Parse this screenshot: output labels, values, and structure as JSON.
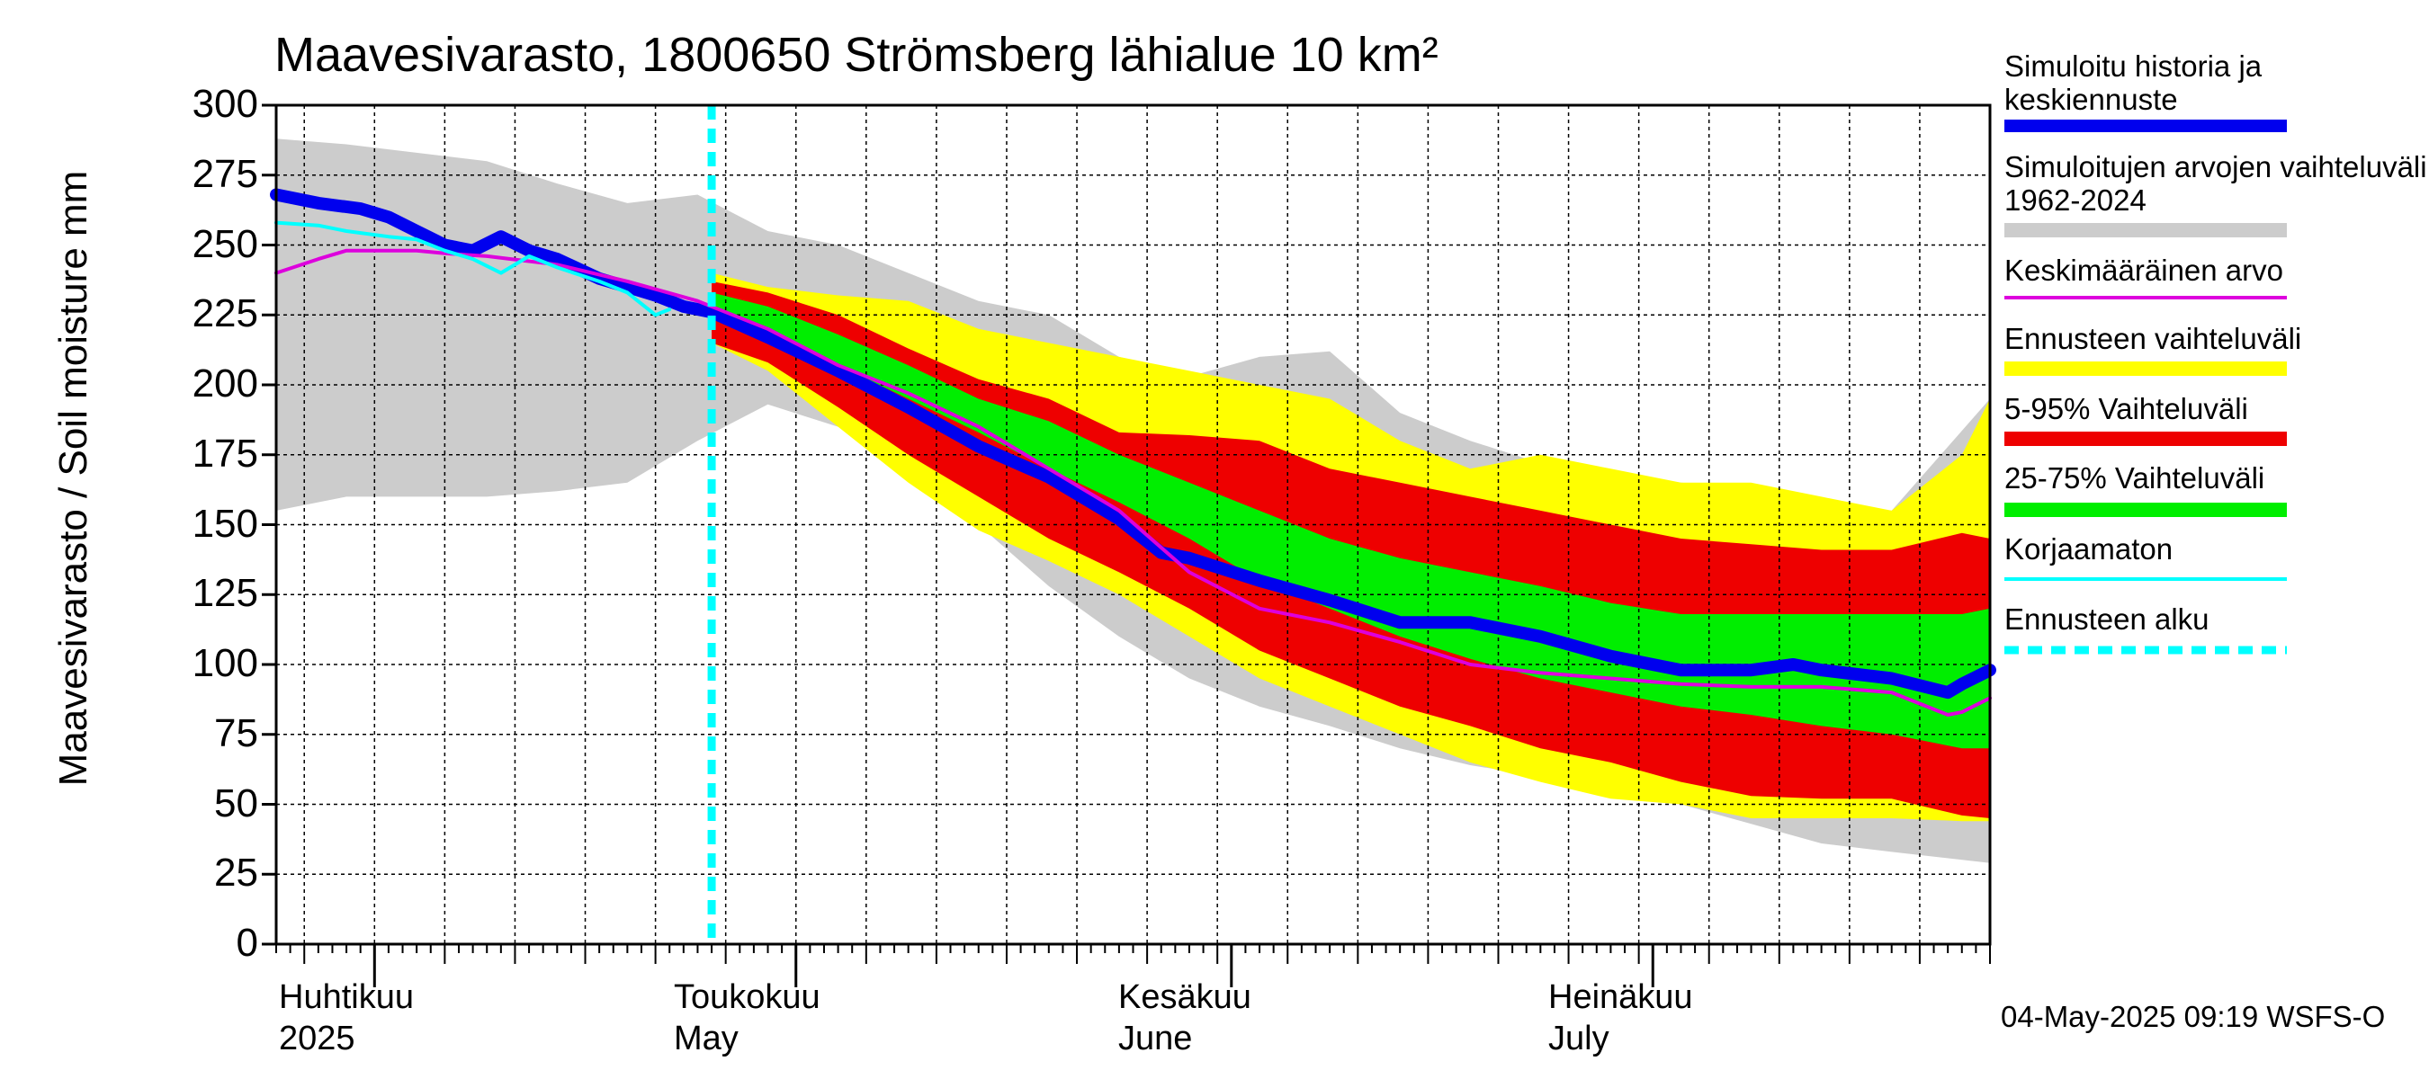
{
  "title": "Maavesivarasto, 1800650 Strömsberg lähialue 10 km²",
  "ylabel": "Maavesivarasto / Soil moisture   mm",
  "footer": "04-May-2025 09:19 WSFS-O",
  "months": [
    {
      "fi": "Huhtikuu",
      "en": "2025"
    },
    {
      "fi": "Toukokuu",
      "en": "May"
    },
    {
      "fi": "Kesäkuu",
      "en": "June"
    },
    {
      "fi": "Heinäkuu",
      "en": "July"
    }
  ],
  "legend": [
    {
      "label": "Simuloitu historia ja keskiennuste",
      "color": "#0000ee",
      "style": "thick"
    },
    {
      "label": "Simuloitujen arvojen vaihteluväli 1962-2024",
      "color": "#cccccc",
      "style": "band"
    },
    {
      "label": "Keskimääräinen arvo",
      "color": "#dd00dd",
      "style": "thin"
    },
    {
      "label": "Ennusteen vaihteluväli",
      "color": "#ffff00",
      "style": "band"
    },
    {
      "label": "5-95% Vaihteluväli",
      "color": "#ee0000",
      "style": "band"
    },
    {
      "label": "25-75% Vaihteluväli",
      "color": "#00ee00",
      "style": "band"
    },
    {
      "label": "Korjaamaton",
      "color": "#00ffff",
      "style": "thin"
    },
    {
      "label": "Ennusteen alku",
      "color": "#00ffff",
      "style": "dashed"
    }
  ],
  "chart_data": {
    "type": "area",
    "title": "Maavesivarasto, 1800650 Strömsberg lähialue 10 km²",
    "ylabel": "Maavesivarasto / Soil moisture   mm",
    "xlabel": "",
    "ylim": [
      0,
      300
    ],
    "yticks": [
      0,
      25,
      50,
      75,
      100,
      125,
      150,
      175,
      200,
      225,
      250,
      275,
      300
    ],
    "x_unit": "days since 2025-03-25",
    "xlim": [
      0,
      122
    ],
    "month_starts": [
      7,
      37,
      68,
      98
    ],
    "forecast_start": 31,
    "series": [
      {
        "name": "Simuloitujen arvojen vaihteluväli 1962-2024",
        "kind": "band",
        "color": "#cccccc",
        "x": [
          0,
          5,
          10,
          15,
          20,
          25,
          30,
          35,
          40,
          45,
          50,
          55,
          60,
          65,
          70,
          75,
          80,
          85,
          90,
          95,
          100,
          105,
          110,
          115,
          122
        ],
        "low": [
          155,
          160,
          160,
          160,
          162,
          165,
          180,
          193,
          185,
          170,
          150,
          128,
          110,
          95,
          85,
          78,
          70,
          64,
          60,
          55,
          50,
          43,
          36,
          33,
          29
        ],
        "high": [
          288,
          286,
          283,
          280,
          272,
          265,
          268,
          255,
          250,
          240,
          230,
          225,
          210,
          203,
          210,
          212,
          190,
          180,
          172,
          168,
          165,
          163,
          158,
          155,
          195
        ]
      },
      {
        "name": "Ennusteen vaihteluväli",
        "kind": "band",
        "color": "#ffff00",
        "x": [
          31,
          35,
          40,
          45,
          50,
          55,
          60,
          65,
          70,
          75,
          80,
          85,
          90,
          95,
          100,
          105,
          110,
          115,
          120,
          122
        ],
        "low": [
          215,
          205,
          185,
          165,
          148,
          137,
          125,
          110,
          95,
          85,
          75,
          65,
          58,
          52,
          50,
          45,
          45,
          45,
          44,
          44
        ],
        "high": [
          240,
          235,
          232,
          230,
          220,
          215,
          210,
          205,
          200,
          195,
          180,
          170,
          175,
          170,
          165,
          165,
          160,
          155,
          175,
          195
        ]
      },
      {
        "name": "5-95% Vaihteluväli",
        "kind": "band",
        "color": "#ee0000",
        "x": [
          31,
          35,
          40,
          45,
          50,
          55,
          60,
          65,
          70,
          75,
          80,
          85,
          90,
          95,
          100,
          105,
          110,
          115,
          120,
          122
        ],
        "low": [
          215,
          208,
          192,
          175,
          160,
          145,
          133,
          120,
          105,
          95,
          85,
          78,
          70,
          65,
          58,
          53,
          52,
          52,
          46,
          45
        ],
        "high": [
          237,
          233,
          225,
          213,
          202,
          195,
          183,
          182,
          180,
          170,
          165,
          160,
          155,
          150,
          145,
          143,
          141,
          141,
          147,
          145
        ]
      },
      {
        "name": "25-75% Vaihteluväli",
        "kind": "band",
        "color": "#00ee00",
        "x": [
          31,
          35,
          40,
          45,
          50,
          55,
          60,
          65,
          70,
          75,
          80,
          85,
          90,
          95,
          100,
          105,
          110,
          115,
          120,
          122
        ],
        "low": [
          228,
          220,
          207,
          195,
          183,
          170,
          158,
          145,
          130,
          120,
          110,
          102,
          95,
          90,
          85,
          82,
          78,
          75,
          70,
          70
        ],
        "high": [
          233,
          228,
          218,
          207,
          195,
          187,
          175,
          165,
          155,
          145,
          138,
          133,
          128,
          122,
          118,
          118,
          118,
          118,
          118,
          120
        ]
      },
      {
        "name": "Simuloitu historia ja keskiennuste",
        "kind": "line",
        "color": "#0000ee",
        "width": 14,
        "x": [
          0,
          3,
          6,
          8,
          10,
          12,
          14,
          16,
          18,
          20,
          23,
          25,
          27,
          29,
          31,
          35,
          40,
          45,
          50,
          55,
          60,
          63,
          65,
          70,
          75,
          80,
          85,
          90,
          95,
          100,
          105,
          108,
          110,
          115,
          119,
          120,
          122
        ],
        "y": [
          268,
          265,
          263,
          260,
          255,
          250,
          248,
          253,
          248,
          245,
          238,
          235,
          232,
          228,
          226,
          217,
          205,
          192,
          178,
          167,
          152,
          140,
          138,
          130,
          123,
          115,
          115,
          110,
          103,
          98,
          98,
          100,
          98,
          95,
          90,
          93,
          98
        ]
      },
      {
        "name": "Keskimääräinen arvo",
        "kind": "line",
        "color": "#dd00dd",
        "width": 4,
        "x": [
          0,
          3,
          5,
          8,
          10,
          12,
          15,
          20,
          25,
          30,
          35,
          40,
          45,
          50,
          55,
          60,
          65,
          70,
          75,
          80,
          85,
          90,
          95,
          100,
          105,
          110,
          115,
          119,
          120,
          122
        ],
        "y": [
          240,
          245,
          248,
          248,
          248,
          247,
          246,
          243,
          237,
          230,
          220,
          207,
          197,
          185,
          170,
          155,
          133,
          120,
          115,
          108,
          100,
          97,
          95,
          93,
          92,
          92,
          90,
          82,
          83,
          88
        ]
      },
      {
        "name": "Korjaamaton",
        "kind": "line",
        "color": "#00ffff",
        "width": 4,
        "x": [
          0,
          3,
          5,
          8,
          10,
          12,
          14,
          16,
          18,
          20,
          23,
          25,
          27,
          28
        ],
        "y": [
          258,
          257,
          255,
          253,
          252,
          248,
          245,
          240,
          246,
          242,
          237,
          233,
          225,
          227
        ]
      }
    ]
  }
}
